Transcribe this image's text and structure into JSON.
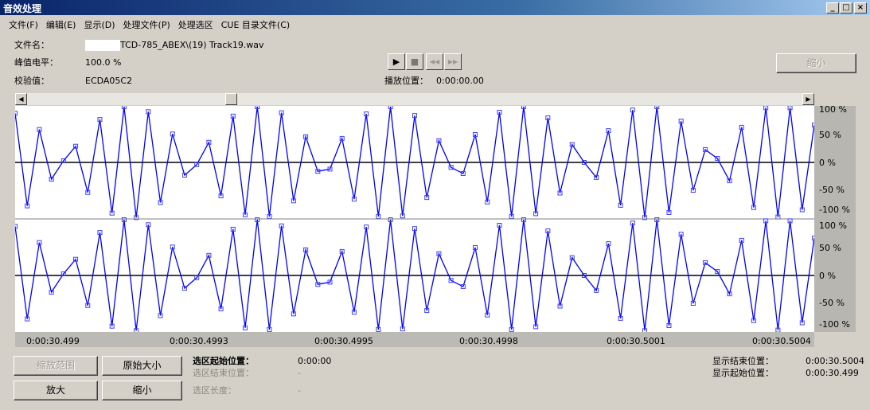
{
  "window": {
    "title": "音效处理",
    "minimize": "_",
    "maximize": "□",
    "close": "×"
  },
  "menu": [
    "文件(F)",
    "编辑(E)",
    "显示(D)",
    "处理文件(P)",
    "处理选区",
    "CUE 目录文件(C)"
  ],
  "info": {
    "filename_label": "文件名：",
    "filename_value": "TCD-785_ABEX\\(19) Track19.wav",
    "peak_label": "峰值电平：",
    "peak_value": "100.0 %",
    "checksum_label": "校验值：",
    "checksum_value": "ECDA05C2",
    "play_pos_label": "播放位置：",
    "play_pos_value": "0:00:00.00"
  },
  "transport": {
    "play": "▶",
    "stop": "■",
    "rewind": "◀◀",
    "forward": "▶▶"
  },
  "zoom_out_top": "缩小",
  "scrollbar": {
    "position_fraction": 0.26
  },
  "chart_data": {
    "type": "line",
    "channels": 2,
    "series": [
      {
        "values": [
          88,
          -78,
          59,
          -30,
          3,
          29,
          -54,
          77,
          -91,
          100,
          -99,
          91,
          -72,
          51,
          -23,
          -4,
          36,
          -60,
          83,
          -94,
          100,
          -97,
          89,
          -69,
          46,
          -16,
          -12,
          43,
          -66,
          87,
          -97,
          100,
          -96,
          84,
          -63,
          39,
          -9,
          -20,
          50,
          -71,
          90,
          -97,
          100,
          -92,
          80,
          -55,
          32,
          0,
          -27,
          57,
          -77,
          94,
          -99,
          100,
          -90,
          74,
          -50,
          23,
          7,
          -33,
          63,
          -81,
          98,
          -98,
          98,
          -85,
          67
        ]
      }
    ],
    "ylim": [
      -100,
      100
    ],
    "y_ticks": [
      "100 %",
      "50 %",
      "0 %",
      "-50 %",
      "-100 %"
    ],
    "x_ticks": [
      "0:00:30.499",
      "0:00:30.4993",
      "0:00:30.4995",
      "0:00:30.4998",
      "0:00:30.5001",
      "0:00:30.5004"
    ],
    "line_color": "#0000ff",
    "zero_line_color": "#000000"
  },
  "buttons": {
    "zoom_range": "缩放范围",
    "original_size": "原始大小",
    "zoom_in": "放大",
    "zoom_out": "缩小"
  },
  "selection": {
    "start_label": "选区起始位置：",
    "start_value": "0:00:00",
    "end_label": "选区结束位置：",
    "end_value": "-",
    "length_label": "选区长度：",
    "length_value": "-"
  },
  "display": {
    "end_label": "显示结束位置：",
    "end_value": "0:00:30.5004",
    "start_label": "显示起始位置：",
    "start_value": "0:00:30.499"
  }
}
